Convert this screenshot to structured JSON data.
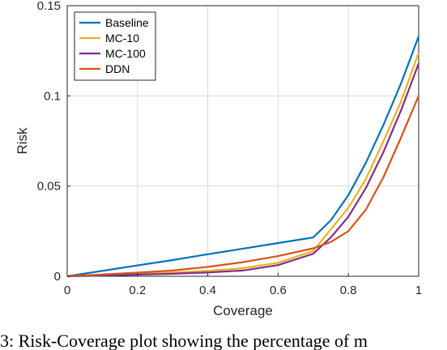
{
  "chart_data": {
    "type": "line",
    "xlabel": "Coverage",
    "ylabel": "Risk",
    "xlim": [
      0,
      1
    ],
    "ylim": [
      0,
      0.15
    ],
    "xticks": [
      "0",
      "0.2",
      "0.4",
      "0.6",
      "0.8",
      "1"
    ],
    "yticks": [
      "0",
      "0.05",
      "0.1",
      "0.15"
    ],
    "grid": true,
    "legend_position": "top-left",
    "series": [
      {
        "name": "Baseline",
        "color": "#0072BD",
        "x": [
          0,
          0.1,
          0.2,
          0.3,
          0.4,
          0.5,
          0.6,
          0.7,
          0.75,
          0.8,
          0.85,
          0.9,
          0.95,
          1.0
        ],
        "y": [
          0,
          0.003,
          0.006,
          0.009,
          0.0122,
          0.0153,
          0.0184,
          0.0215,
          0.031,
          0.045,
          0.063,
          0.084,
          0.107,
          0.133
        ]
      },
      {
        "name": "MC-10",
        "color": "#EDB120",
        "x": [
          0,
          0.1,
          0.2,
          0.3,
          0.4,
          0.5,
          0.6,
          0.7,
          0.75,
          0.8,
          0.85,
          0.9,
          0.95,
          1.0
        ],
        "y": [
          0,
          0.0005,
          0.0012,
          0.002,
          0.003,
          0.0045,
          0.0075,
          0.014,
          0.026,
          0.038,
          0.054,
          0.075,
          0.097,
          0.124
        ]
      },
      {
        "name": "MC-100",
        "color": "#7E2F8E",
        "x": [
          0,
          0.1,
          0.2,
          0.3,
          0.4,
          0.5,
          0.6,
          0.7,
          0.75,
          0.8,
          0.85,
          0.9,
          0.95,
          1.0
        ],
        "y": [
          0,
          0.0004,
          0.0009,
          0.0014,
          0.0021,
          0.0032,
          0.0062,
          0.0125,
          0.0215,
          0.033,
          0.049,
          0.069,
          0.092,
          0.118
        ]
      },
      {
        "name": "DDN",
        "color": "#D95319",
        "x": [
          0,
          0.1,
          0.2,
          0.3,
          0.4,
          0.5,
          0.6,
          0.7,
          0.75,
          0.8,
          0.85,
          0.9,
          0.95,
          1.0
        ],
        "y": [
          0,
          0.001,
          0.002,
          0.0032,
          0.0052,
          0.0078,
          0.0112,
          0.0155,
          0.019,
          0.025,
          0.037,
          0.055,
          0.077,
          0.1
        ]
      }
    ]
  },
  "caption": "3: Risk-Coverage plot showing the percentage of m"
}
